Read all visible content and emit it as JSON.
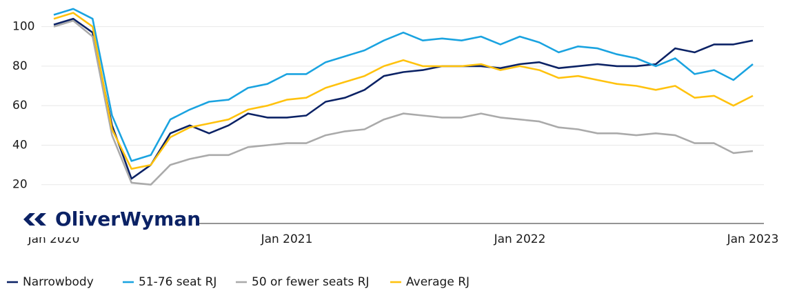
{
  "chart_data": {
    "type": "line",
    "logo": "OliverWyman",
    "categories": [
      "Jan 2020",
      null,
      null,
      null,
      null,
      null,
      null,
      null,
      null,
      null,
      null,
      null,
      "Jan 2021",
      null,
      null,
      null,
      null,
      null,
      null,
      null,
      null,
      null,
      null,
      null,
      "Jan 2022",
      null,
      null,
      null,
      null,
      null,
      null,
      null,
      null,
      null,
      null,
      null,
      "Jan 2023"
    ],
    "series": [
      {
        "name": "Narrowbody",
        "color": "#0b2265",
        "values": [
          101,
          104,
          97,
          50,
          23,
          30,
          46,
          50,
          46,
          50,
          56,
          54,
          54,
          55,
          62,
          64,
          68,
          75,
          77,
          78,
          80,
          80,
          80,
          79,
          81,
          82,
          79,
          80,
          81,
          80,
          80,
          81,
          89,
          87,
          91,
          91,
          93
        ]
      },
      {
        "name": "51-76 seat RJ",
        "color": "#1aa3e0",
        "values": [
          106,
          109,
          104,
          55,
          32,
          35,
          53,
          58,
          62,
          63,
          69,
          71,
          76,
          76,
          82,
          85,
          88,
          93,
          97,
          93,
          94,
          93,
          95,
          91,
          95,
          92,
          87,
          90,
          89,
          86,
          84,
          80,
          84,
          76,
          78,
          73,
          81
        ]
      },
      {
        "name": "50 or fewer seats RJ",
        "color": "#aaaaaa",
        "values": [
          100,
          103,
          95,
          45,
          21,
          20,
          30,
          33,
          35,
          35,
          39,
          40,
          41,
          41,
          45,
          47,
          48,
          53,
          56,
          55,
          54,
          54,
          56,
          54,
          53,
          52,
          49,
          48,
          46,
          46,
          45,
          46,
          45,
          41,
          41,
          36,
          37
        ]
      },
      {
        "name": "Average RJ",
        "color": "#ffc20e",
        "values": [
          104,
          107,
          100,
          48,
          28,
          30,
          44,
          49,
          51,
          53,
          58,
          60,
          63,
          64,
          69,
          72,
          75,
          80,
          83,
          80,
          80,
          80,
          81,
          78,
          80,
          78,
          74,
          75,
          73,
          71,
          70,
          68,
          70,
          64,
          65,
          60,
          65
        ]
      }
    ],
    "ylim": [
      0,
      110
    ],
    "yticks": [
      20,
      40,
      60,
      80,
      100
    ],
    "grid": true
  }
}
